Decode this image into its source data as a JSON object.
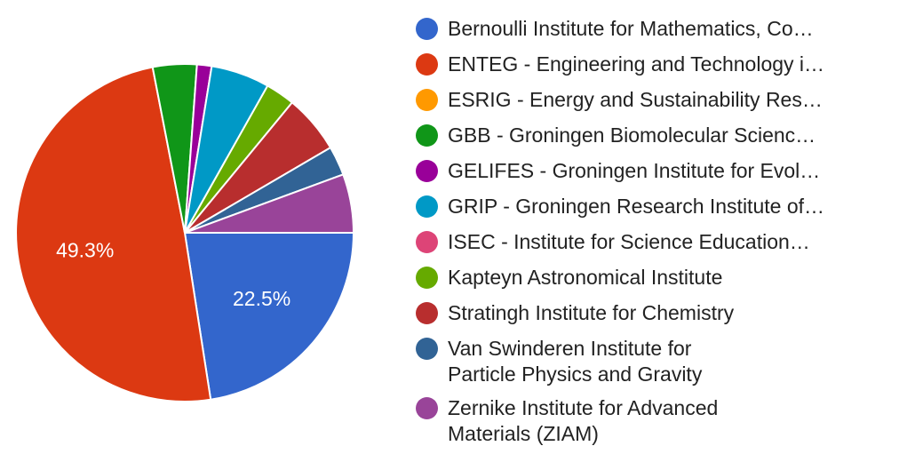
{
  "chart_data": {
    "type": "pie",
    "title": "",
    "legend_position": "right",
    "series": [
      {
        "name": "Bernoulli Institute for Mathematics, Co…",
        "value": 22.5,
        "color": "#3366cc",
        "label": "22.5%"
      },
      {
        "name": "ENTEG - Engineering and Technology i…",
        "value": 49.3,
        "color": "#dc3912",
        "label": "49.3%"
      },
      {
        "name": "ESRIG - Energy and Sustainability Res…",
        "value": 0,
        "color": "#ff9900",
        "label": ""
      },
      {
        "name": "GBB - Groningen Biomolecular Scienc…",
        "value": 4.2,
        "color": "#109618",
        "label": ""
      },
      {
        "name": "GELIFES - Groningen Institute for Evol…",
        "value": 1.4,
        "color": "#990099",
        "label": ""
      },
      {
        "name": "GRIP - Groningen Research Institute of…",
        "value": 5.6,
        "color": "#0099c6",
        "label": ""
      },
      {
        "name": "ISEC - Institute for Science Education…",
        "value": 0,
        "color": "#dd4477",
        "label": ""
      },
      {
        "name": "Kapteyn Astronomical Institute",
        "value": 2.8,
        "color": "#66aa00",
        "label": ""
      },
      {
        "name": "Stratingh Institute for Chemistry",
        "value": 5.6,
        "color": "#b82e2e",
        "label": ""
      },
      {
        "name": "Van Swinderen Institute for\nParticle Physics and Gravity",
        "value": 2.8,
        "color": "#316395",
        "label": ""
      },
      {
        "name": "Zernike Institute for Advanced\nMaterials (ZIAM)",
        "value": 5.6,
        "color": "#994499",
        "label": ""
      }
    ]
  }
}
